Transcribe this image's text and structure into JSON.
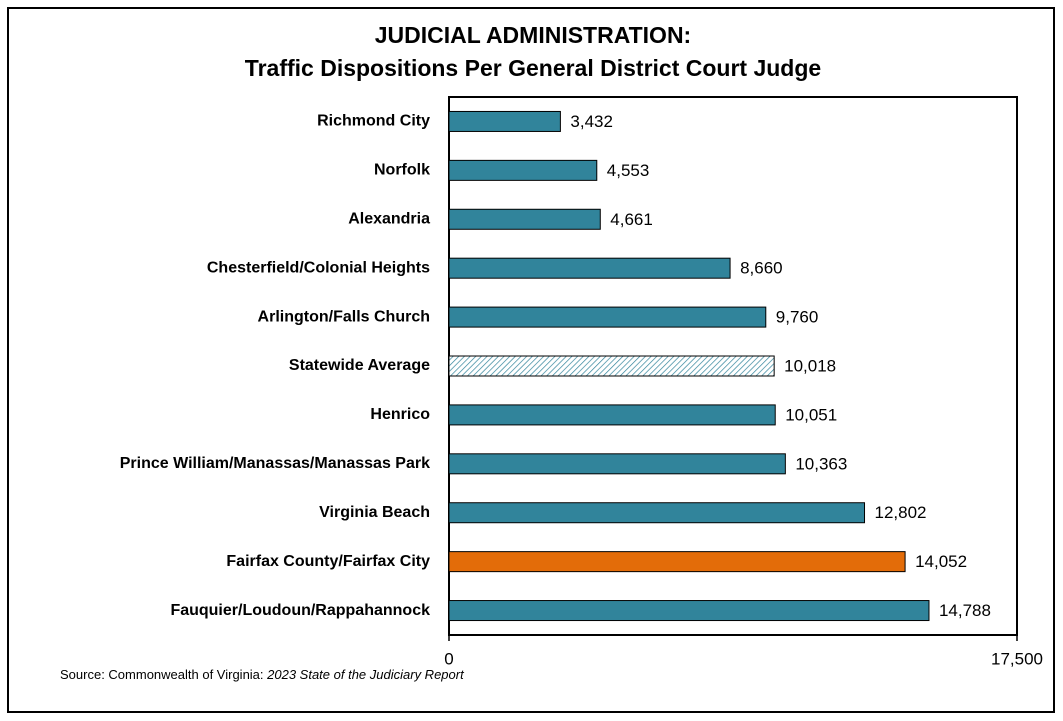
{
  "chart_data": {
    "type": "bar",
    "orientation": "horizontal",
    "title": "JUDICIAL ADMINISTRATION:",
    "subtitle": "Traffic Dispositions Per General District Court Judge",
    "categories": [
      "Richmond City",
      "Norfolk",
      "Alexandria",
      "Chesterfield/Colonial Heights",
      "Arlington/Falls Church",
      "Statewide Average",
      "Henrico",
      "Prince William/Manassas/Manassas Park",
      "Virginia Beach",
      "Fairfax County/Fairfax City",
      "Fauquier/Loudoun/Rappahannock"
    ],
    "values": [
      3432,
      4553,
      4661,
      8660,
      9760,
      10018,
      10051,
      10363,
      12802,
      14052,
      14788
    ],
    "value_labels": [
      "3,432",
      "4,553",
      "4,661",
      "8,660",
      "9,760",
      "10,018",
      "10,051",
      "10,363",
      "12,802",
      "14,052",
      "14,788"
    ],
    "colors": [
      "#31849b",
      "#31849b",
      "#31849b",
      "#31849b",
      "#31849b",
      "#ffffff",
      "#31849b",
      "#31849b",
      "#31849b",
      "#e36c09",
      "#31849b"
    ],
    "hatched": [
      false,
      false,
      false,
      false,
      false,
      true,
      false,
      false,
      false,
      false,
      false
    ],
    "xlim": [
      0,
      17500
    ],
    "xticks": [
      0,
      {
        "value": 17500,
        "label": "17,500"
      }
    ],
    "source": "Source: Commonwealth of Virginia: ",
    "source_title": "2023 State of the Judiciary Report"
  }
}
